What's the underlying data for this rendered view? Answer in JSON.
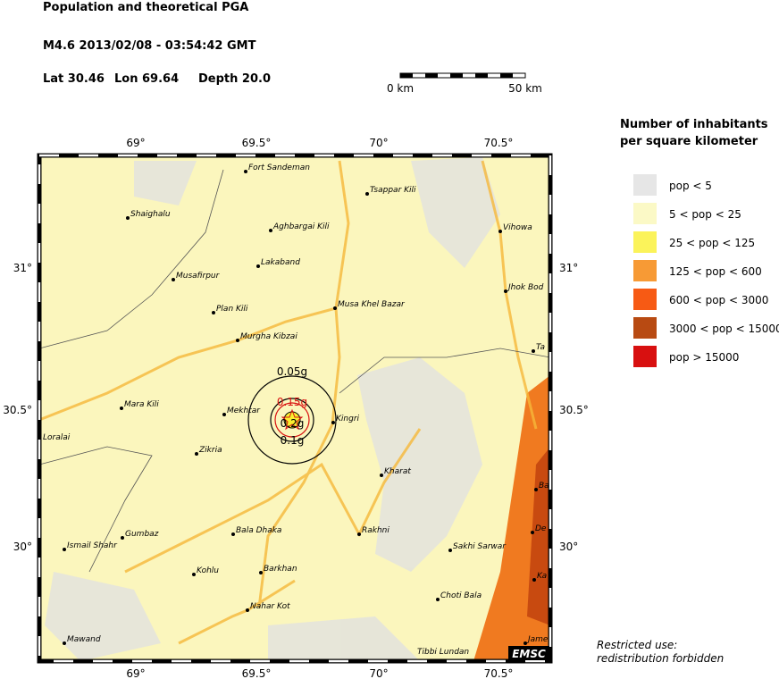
{
  "header": {
    "title": "Population and theoretical PGA",
    "event": "M4.6  2013/02/08 - 03:54:42 GMT",
    "lat": "Lat 30.46",
    "lon": "Lon  69.64",
    "depth": "Depth  20.0"
  },
  "scale_bar": {
    "start": "0 km",
    "end": "50 km"
  },
  "legend": {
    "title": [
      "Number of inhabitants",
      "per square kilometer"
    ],
    "items": [
      {
        "label": "pop < 5",
        "color": "#e6e6e6"
      },
      {
        "label": "5 < pop < 25",
        "color": "#fbf9c6"
      },
      {
        "label": "25 < pop < 125",
        "color": "#fbf35a"
      },
      {
        "label": "125 < pop < 600",
        "color": "#f79a35"
      },
      {
        "label": "600 < pop < 3000",
        "color": "#f75a14"
      },
      {
        "label": "3000 < pop < 15000",
        "color": "#b84a12"
      },
      {
        "label": "pop > 15000",
        "color": "#d81010"
      }
    ]
  },
  "map": {
    "lon_labels": [
      "69°",
      "69.5°",
      "70°",
      "70.5°"
    ],
    "lat_labels": [
      "31°",
      "30.5°",
      "30°"
    ],
    "pga_labels": [
      "0.05g",
      "0.1g",
      "0.15g",
      "0.2g"
    ],
    "cities": [
      "Fort Sandeman",
      "Tsappar Kili",
      "Shaighalu",
      "Aghbargai Kili",
      "Vihowa",
      "Lakaband",
      "Musafirpur",
      "Jhok Bod",
      "Musa Khel Bazar",
      "Plan Kili",
      "Murgha Kibzai",
      "Ta",
      "Mara Kili",
      "Mekhtar",
      "Kingri",
      "Loralai",
      "Zikria",
      "Kharat",
      "Ba",
      "Ismail Shahr",
      "Gumbaz",
      "Bala Dhaka",
      "Rakhni",
      "Sakhi Sarwar",
      "De",
      "Kohlu",
      "Barkhan",
      "Ka",
      "Choti Bala",
      "Nahar Kot",
      "Mawand",
      "Tibbi Lundan",
      "Jame"
    ],
    "badge": "EMSC"
  },
  "footer": [
    "Restricted use:",
    "redistribution forbidden"
  ]
}
